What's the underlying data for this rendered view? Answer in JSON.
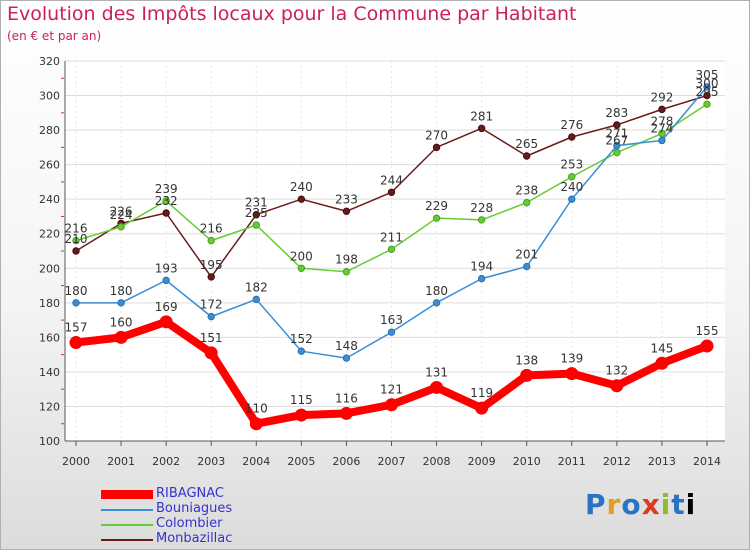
{
  "title": "Evolution des Impôts locaux pour la Commune par Habitant",
  "subtitle": "(en € et par an)",
  "logo": "Proxiti",
  "chart_data": {
    "type": "line",
    "title": "Evolution des Impôts locaux pour la Commune par Habitant",
    "subtitle": "(en € et par an)",
    "x": [
      "2000",
      "2001",
      "2002",
      "2003",
      "2004",
      "2005",
      "2006",
      "2007",
      "2008",
      "2009",
      "2010",
      "2011",
      "2012",
      "2013",
      "2014"
    ],
    "ylim": [
      100,
      320
    ],
    "yticks": [
      100,
      120,
      140,
      160,
      180,
      200,
      220,
      240,
      260,
      280,
      300,
      320
    ],
    "grid": true,
    "legend_position": "bottom-left",
    "series": [
      {
        "name": "RIBAGNAC",
        "color": "#ff0000",
        "values": [
          157,
          160,
          169,
          151,
          110,
          115,
          116,
          121,
          131,
          119,
          138,
          139,
          132,
          145,
          155
        ]
      },
      {
        "name": "Bouniagues",
        "color": "#3a8ed6",
        "values": [
          180,
          180,
          193,
          172,
          182,
          152,
          148,
          163,
          180,
          194,
          201,
          240,
          271,
          274,
          305
        ]
      },
      {
        "name": "Colombier",
        "color": "#66cc33",
        "values": [
          216,
          224,
          239,
          216,
          225,
          200,
          198,
          211,
          229,
          228,
          238,
          253,
          267,
          278,
          295
        ]
      },
      {
        "name": "Monbazillac",
        "color": "#6b1a1a",
        "values": [
          210,
          226,
          232,
          195,
          231,
          240,
          233,
          244,
          270,
          281,
          265,
          276,
          283,
          292,
          300
        ]
      }
    ]
  }
}
